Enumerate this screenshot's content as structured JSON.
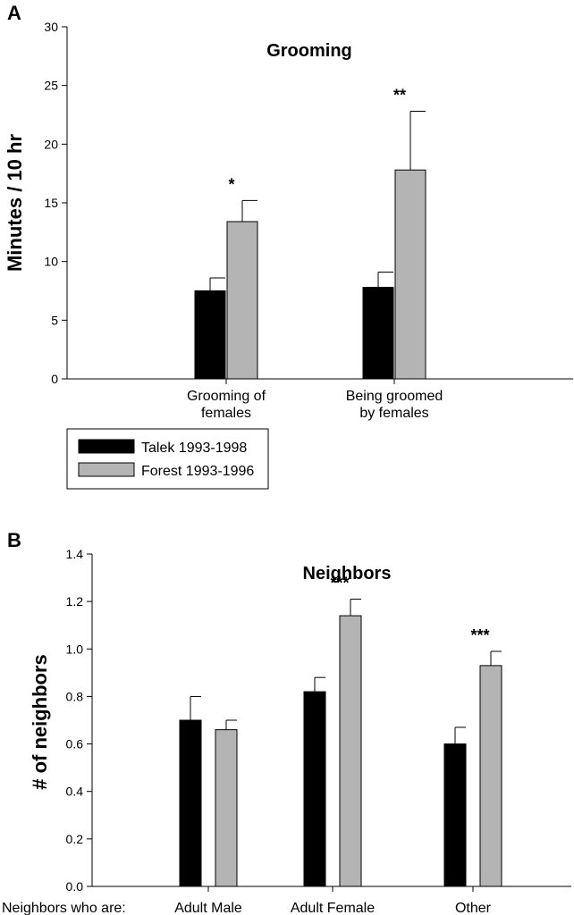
{
  "colors": {
    "talek": "#000000",
    "forest": "#b4b4b4",
    "axis": "#000000",
    "background": "#ffffff"
  },
  "chart_data": [
    {
      "type": "bar",
      "panel": "A",
      "title": "Grooming",
      "ylabel": "Minutes / 10 hr",
      "xlabel": "",
      "ylim": [
        0,
        30
      ],
      "yticks": [
        "0",
        "5",
        "10",
        "15",
        "20",
        "25",
        "30"
      ],
      "categories": [
        {
          "lines": [
            "Grooming of",
            "females"
          ]
        },
        {
          "lines": [
            "Being groomed",
            "by females"
          ]
        }
      ],
      "series": [
        {
          "name": "Talek 1993-1998",
          "values": [
            7.5,
            7.8
          ],
          "errors": [
            1.1,
            1.3
          ]
        },
        {
          "name": "Forest 1993-1996",
          "values": [
            13.4,
            17.8
          ],
          "errors": [
            1.8,
            5.0
          ]
        }
      ],
      "significance": [
        "*",
        "**"
      ],
      "grid": false,
      "legend": {
        "placement": "bottom-left, below plot",
        "entries": [
          "Talek 1993-1998",
          "Forest 1993-1996"
        ]
      }
    },
    {
      "type": "bar",
      "panel": "B",
      "title": "Neighbors",
      "ylabel": "# of neighbors",
      "xlabel": "Neighbors who are:",
      "ylim": [
        0,
        1.4
      ],
      "yticks": [
        "0.0",
        "0.2",
        "0.4",
        "0.6",
        "0.8",
        "1.0",
        "1.2",
        "1.4"
      ],
      "categories": [
        {
          "lines": [
            "Adult Male"
          ]
        },
        {
          "lines": [
            "Adult Female"
          ]
        },
        {
          "lines": [
            "Other"
          ]
        }
      ],
      "series": [
        {
          "name": "Talek 1993-1998",
          "values": [
            0.7,
            0.82,
            0.6
          ],
          "errors": [
            0.1,
            0.06,
            0.07
          ]
        },
        {
          "name": "Forest 1993-1996",
          "values": [
            0.66,
            1.14,
            0.93
          ],
          "errors": [
            0.04,
            0.07,
            0.06
          ]
        }
      ],
      "significance": [
        "",
        "***",
        "***"
      ],
      "grid": false
    }
  ]
}
